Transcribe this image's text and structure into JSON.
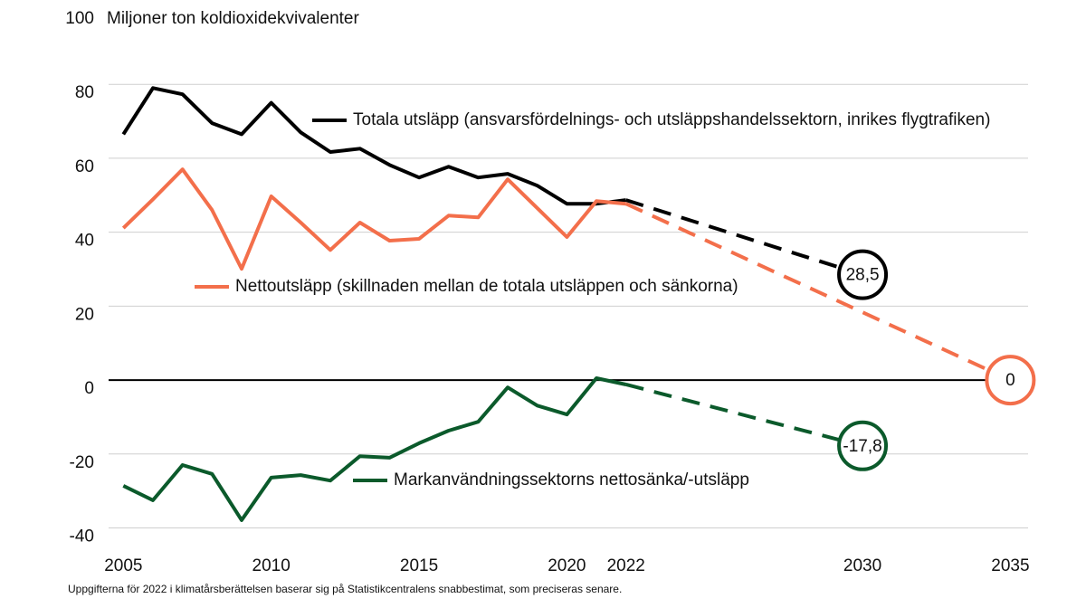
{
  "chart_data": {
    "type": "line",
    "title": "Miljoner ton koldioxidekvivalenter",
    "footnote": "Uppgifterna för 2022 i klimatårsberättelsen baserar sig på Statistikcentralens snabbestimat, som preciseras senare.",
    "x": [
      2005,
      2006,
      2007,
      2008,
      2009,
      2010,
      2011,
      2012,
      2013,
      2014,
      2015,
      2016,
      2017,
      2018,
      2019,
      2020,
      2021,
      2022
    ],
    "series": [
      {
        "name": "Totala utsläpp (ansvarsfördelnings- och utsläppshandelssektorn, inrikes flygtrafiken)",
        "color": "#000000",
        "values": [
          66.5,
          79,
          77.3,
          69.5,
          66.5,
          75,
          67,
          61.7,
          62.6,
          58.2,
          54.8,
          57.7,
          54.8,
          55.8,
          52.6,
          47.7,
          47.7,
          48.7
        ],
        "projection": {
          "x": 2030,
          "value": 28.5,
          "value_label": "28,5"
        }
      },
      {
        "name": "Nettoutsläpp (skillnaden mellan de totala utsläppen och sänkorna)",
        "color": "#f36f4b",
        "values": [
          41.1,
          48.9,
          57,
          46,
          30.1,
          49.7,
          42.6,
          35.2,
          42.6,
          37.7,
          38.2,
          44.5,
          44,
          54.3,
          46.5,
          38.7,
          48.4,
          47.7
        ],
        "projection": {
          "x": 2035,
          "value": 0
        }
      },
      {
        "name": "Markanvändningssektorns nettosänka/-utsläpp",
        "color": "#0b5a2b",
        "values": [
          -28.6,
          -32.5,
          -23,
          -25.4,
          -37.9,
          -26.4,
          -25.7,
          -27.2,
          -20.6,
          -21,
          -17.1,
          -13.7,
          -11.3,
          -2,
          -6.9,
          -9.3,
          0.5,
          -1.2
        ],
        "projection": {
          "x": 2030,
          "value": -17.8,
          "value_label": "-17,8"
        }
      }
    ],
    "xlim": [
      2004.5,
      2035.6
    ],
    "xticks": [
      2005,
      2010,
      2015,
      2020,
      2022,
      2030,
      2035
    ],
    "ylim": [
      -40,
      100
    ],
    "yticks": [
      -40,
      -20,
      0,
      20,
      40,
      60,
      80,
      100
    ],
    "grid": true
  }
}
